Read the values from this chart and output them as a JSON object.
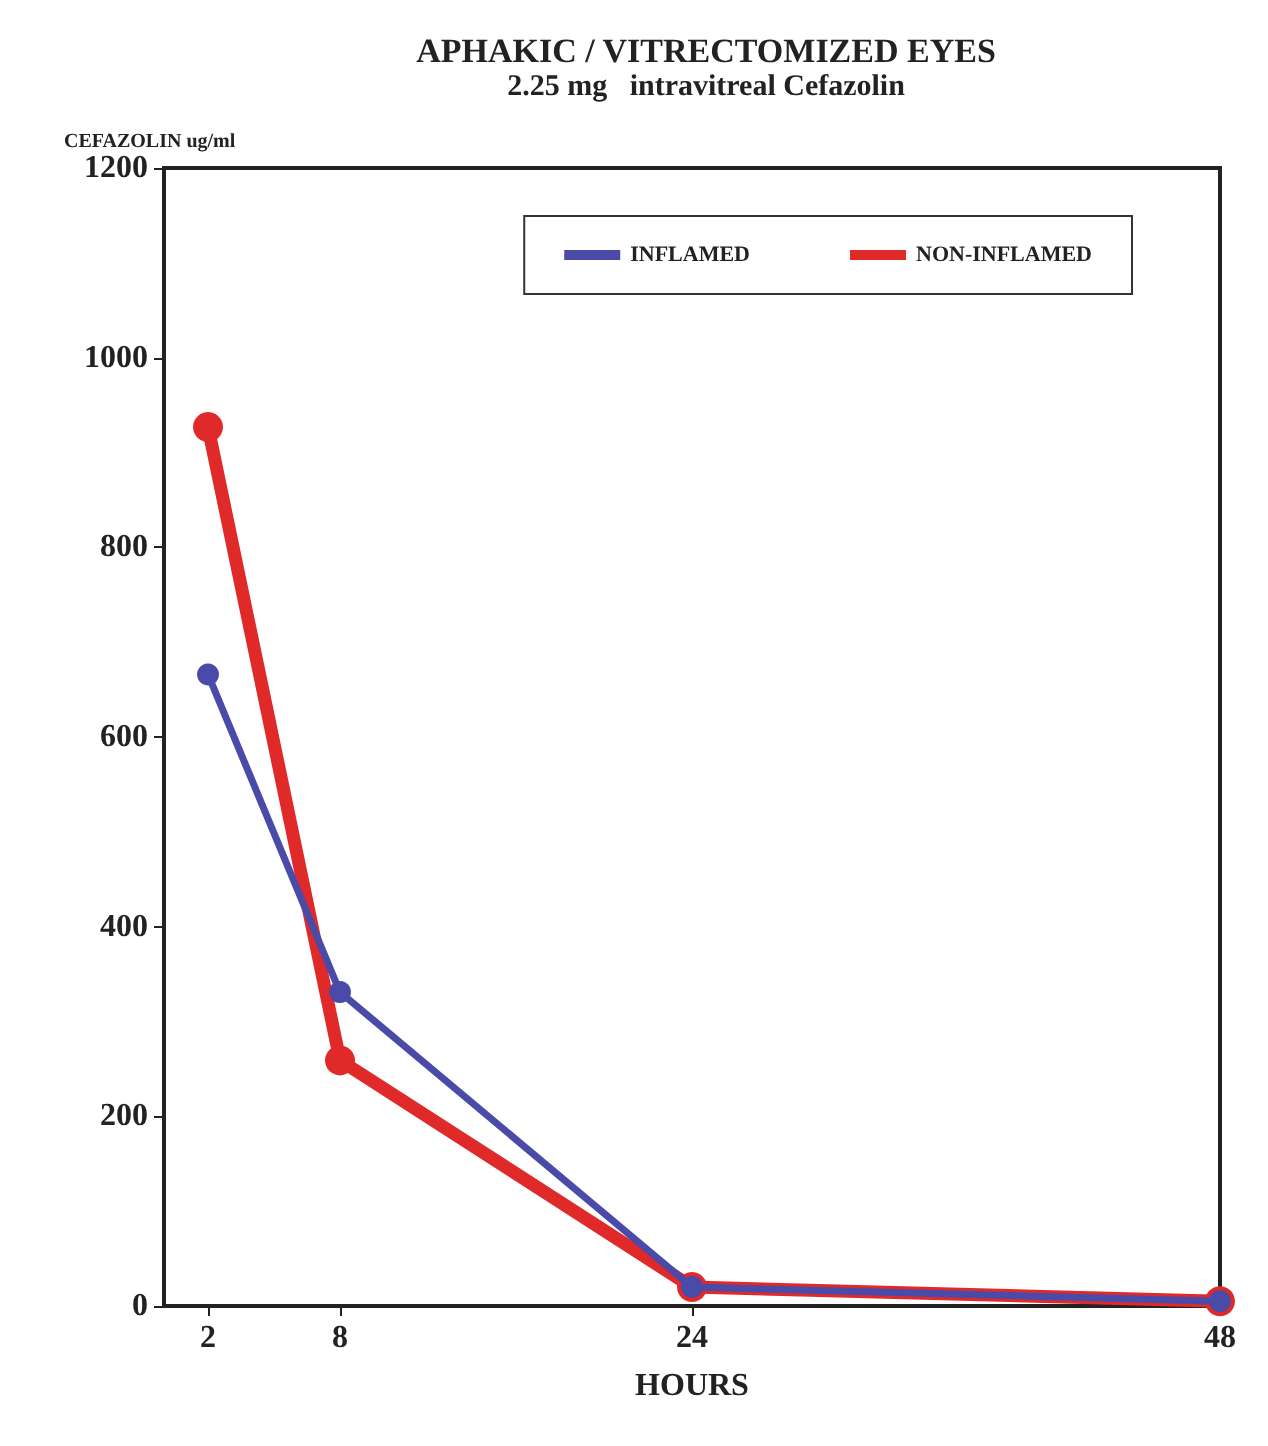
{
  "chart_data": {
    "type": "line",
    "title": "APHAKIC / VITRECTOMIZED EYES",
    "subtitle": "2.25 mg   intravitreal Cefazolin",
    "xlabel": "HOURS",
    "ylabel": "CEFAZOLIN ug/ml",
    "x": [
      2,
      8,
      24,
      48
    ],
    "series": [
      {
        "name": "INFLAMED",
        "color": "#4a4aa8",
        "values": [
          666,
          331,
          20,
          5
        ]
      },
      {
        "name": "NON-INFLAMED",
        "color": "#e02a2a",
        "values": [
          927,
          259,
          20,
          5
        ]
      }
    ],
    "xlim": [
      0,
      48
    ],
    "xticks": [
      2,
      8,
      24,
      48
    ],
    "ylim": [
      0,
      1200
    ],
    "yticks": [
      0,
      200,
      400,
      600,
      800,
      1000,
      1200
    ],
    "grid": false,
    "legend": "top right",
    "marker": "circle",
    "line_style": "solid"
  }
}
